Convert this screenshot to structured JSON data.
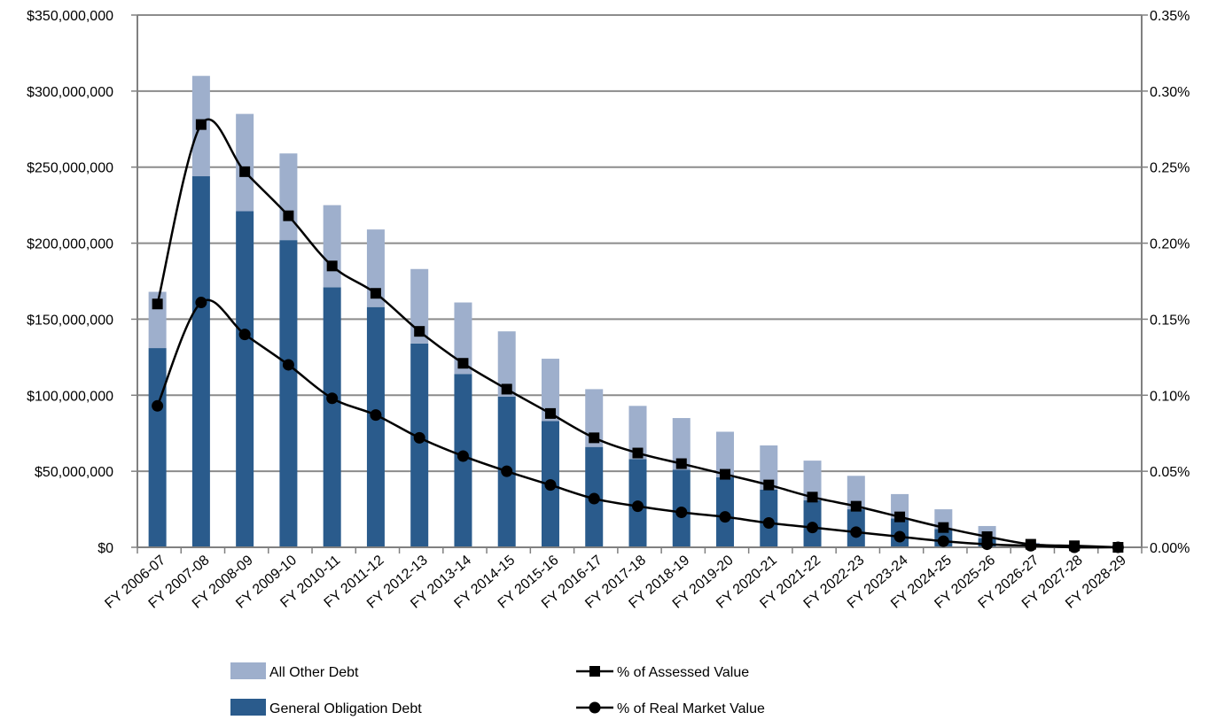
{
  "chart_data": {
    "type": "bar",
    "stacked": true,
    "categories": [
      "FY 2006-07",
      "FY 2007-08",
      "FY 2008-09",
      "FY 2009-10",
      "FY 2010-11",
      "FY 2011-12",
      "FY 2012-13",
      "FY 2013-14",
      "FY 2014-15",
      "FY 2015-16",
      "FY 2016-17",
      "FY 2017-18",
      "FY 2018-19",
      "FY 2019-20",
      "FY 2020-21",
      "FY 2021-22",
      "FY 2022-23",
      "FY 2023-24",
      "FY 2024-25",
      "FY 2025-26",
      "FY 2026-27",
      "FY 2027-28",
      "FY 2028-29"
    ],
    "series": [
      {
        "name": "General Obligation Debt",
        "kind": "bar",
        "axis": "left",
        "color": "#2a5b8c",
        "values": [
          131000000,
          244000000,
          221000000,
          202000000,
          171000000,
          158000000,
          134000000,
          114000000,
          99000000,
          83000000,
          66000000,
          58000000,
          51000000,
          46000000,
          38000000,
          31000000,
          25000000,
          19000000,
          12000000,
          6000000,
          2000000,
          1000000,
          0
        ]
      },
      {
        "name": "All Other Debt",
        "kind": "bar",
        "axis": "left",
        "color": "#9eafcc",
        "values": [
          37000000,
          66000000,
          64000000,
          57000000,
          54000000,
          51000000,
          49000000,
          47000000,
          43000000,
          41000000,
          38000000,
          35000000,
          34000000,
          30000000,
          29000000,
          26000000,
          22000000,
          16000000,
          13000000,
          8000000,
          1000000,
          0,
          0
        ]
      },
      {
        "name": "% of Assessed Value",
        "kind": "line",
        "marker": "square",
        "axis": "right",
        "color": "#000000",
        "values": [
          0.16,
          0.278,
          0.247,
          0.218,
          0.185,
          0.167,
          0.142,
          0.121,
          0.104,
          0.088,
          0.072,
          0.062,
          0.055,
          0.048,
          0.041,
          0.033,
          0.027,
          0.02,
          0.013,
          0.007,
          0.002,
          0.001,
          0.0
        ]
      },
      {
        "name": "% of Real Market Value",
        "kind": "line",
        "marker": "circle",
        "axis": "right",
        "color": "#000000",
        "values": [
          0.093,
          0.161,
          0.14,
          0.12,
          0.098,
          0.087,
          0.072,
          0.06,
          0.05,
          0.041,
          0.032,
          0.027,
          0.023,
          0.02,
          0.016,
          0.013,
          0.01,
          0.007,
          0.004,
          0.002,
          0.001,
          0.0,
          0.0
        ]
      }
    ],
    "y_left": {
      "min": 0,
      "max": 350000000,
      "ticks": [
        0,
        50000000,
        100000000,
        150000000,
        200000000,
        250000000,
        300000000,
        350000000
      ],
      "tick_labels": [
        "$0",
        "$50,000,000",
        "$100,000,000",
        "$150,000,000",
        "$200,000,000",
        "$250,000,000",
        "$300,000,000",
        "$350,000,000"
      ]
    },
    "y_right": {
      "min": 0,
      "max": 0.35,
      "ticks": [
        0,
        0.05,
        0.1,
        0.15,
        0.2,
        0.25,
        0.3,
        0.35
      ],
      "tick_labels": [
        "0.00%",
        "0.05%",
        "0.10%",
        "0.15%",
        "0.20%",
        "0.25%",
        "0.30%",
        "0.35%"
      ]
    },
    "grid": true,
    "legend_position": "bottom",
    "legend": [
      {
        "label": "All Other Debt",
        "type": "bar",
        "color": "#9eafcc"
      },
      {
        "label": "% of Assessed Value",
        "type": "line",
        "marker": "square",
        "color": "#000000"
      },
      {
        "label": "General Obligation Debt",
        "type": "bar",
        "color": "#2a5b8c"
      },
      {
        "label": "% of Real Market Value",
        "type": "line",
        "marker": "circle",
        "color": "#000000"
      }
    ],
    "colors": {
      "gridline": "#8c8c8c",
      "axis": "#808080"
    }
  }
}
